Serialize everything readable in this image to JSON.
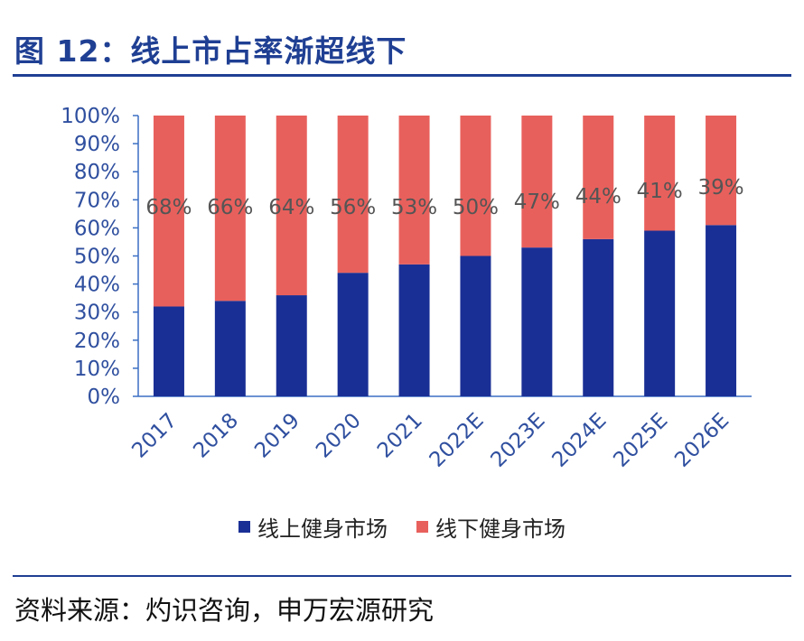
{
  "header": {
    "title": "图 12：线上市占率渐超线下"
  },
  "source": {
    "text": "资料来源：灼识咨询，申万宏源研究"
  },
  "colors": {
    "online": "#1a2f95",
    "offline": "#e8605c",
    "axis": "#3b6fc4",
    "tick_text": "#2f4f9f",
    "label_text": "#555555",
    "title": "#1f3f93"
  },
  "chart_data": {
    "type": "bar",
    "stacked": true,
    "categories": [
      "2017",
      "2018",
      "2019",
      "2020",
      "2021",
      "2022E",
      "2023E",
      "2024E",
      "2025E",
      "2026E"
    ],
    "series": [
      {
        "name": "线上健身市场",
        "values": [
          32,
          34,
          36,
          44,
          47,
          50,
          53,
          56,
          59,
          61
        ]
      },
      {
        "name": "线下健身市场",
        "values": [
          68,
          66,
          64,
          56,
          53,
          50,
          47,
          44,
          41,
          39
        ]
      }
    ],
    "data_labels": [
      "68%",
      "66%",
      "64%",
      "56%",
      "53%",
      "50%",
      "47%",
      "44%",
      "41%",
      "39%"
    ],
    "yticks": [
      "0%",
      "10%",
      "20%",
      "30%",
      "40%",
      "50%",
      "60%",
      "70%",
      "80%",
      "90%",
      "100%"
    ],
    "ylim": [
      0,
      100
    ],
    "xlabel": "",
    "ylabel": "",
    "legend_position": "bottom-center"
  }
}
